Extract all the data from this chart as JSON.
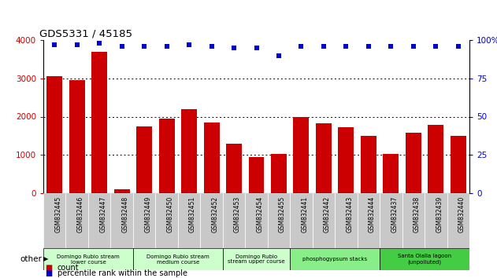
{
  "title": "GDS5331 / 45185",
  "samples": [
    "GSM832445",
    "GSM832446",
    "GSM832447",
    "GSM832448",
    "GSM832449",
    "GSM832450",
    "GSM832451",
    "GSM832452",
    "GSM832453",
    "GSM832454",
    "GSM832455",
    "GSM832441",
    "GSM832442",
    "GSM832443",
    "GSM832444",
    "GSM832437",
    "GSM832438",
    "GSM832439",
    "GSM832440"
  ],
  "counts": [
    3050,
    2950,
    3700,
    100,
    1750,
    1950,
    2200,
    1850,
    1300,
    950,
    1020,
    1980,
    1820,
    1720,
    1490,
    1020,
    1580,
    1780,
    1490
  ],
  "percentiles": [
    97,
    97,
    98,
    96,
    96,
    96,
    97,
    96,
    95,
    95,
    90,
    96,
    96,
    96,
    96,
    96,
    96,
    96,
    96
  ],
  "bar_color": "#cc0000",
  "dot_color": "#0000cc",
  "ylim_left": [
    0,
    4000
  ],
  "ylim_right": [
    0,
    100
  ],
  "yticks_left": [
    0,
    1000,
    2000,
    3000,
    4000
  ],
  "yticks_right": [
    0,
    25,
    50,
    75,
    100
  ],
  "left_tick_color": "#cc0000",
  "right_tick_color": "#0000cc",
  "groups": [
    {
      "label": "Domingo Rubio stream\nlower course",
      "start": 0,
      "end": 3,
      "color": "#ccffcc"
    },
    {
      "label": "Domingo Rubio stream\nmedium course",
      "start": 4,
      "end": 7,
      "color": "#ccffcc"
    },
    {
      "label": "Domingo Rubio\nstream upper course",
      "start": 8,
      "end": 10,
      "color": "#ccffcc"
    },
    {
      "label": "phosphogypsum stacks",
      "start": 11,
      "end": 14,
      "color": "#88ee88"
    },
    {
      "label": "Santa Olalla lagoon\n(unpolluted)",
      "start": 15,
      "end": 18,
      "color": "#44cc44"
    }
  ],
  "legend_count_color": "#cc0000",
  "legend_pct_color": "#0000cc",
  "other_label": "other",
  "bg_color": "#ffffff",
  "tick_label_bg": "#c8c8c8",
  "dot_size": 25
}
